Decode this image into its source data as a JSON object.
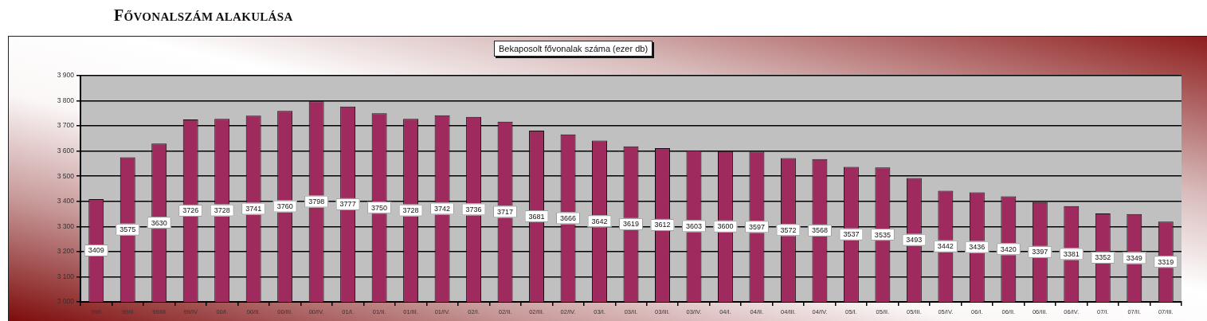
{
  "chart_data": {
    "type": "bar",
    "title": "FŐVONALSZÁM ALAKULÁSA",
    "subtitle": "Bekaposolt fővonalak száma (ezer db)",
    "categories": [
      "99/I",
      "99/II",
      "99/III",
      "99/IV",
      "00/I.",
      "00/II.",
      "00/III.",
      "00/IV.",
      "01/I.",
      "01/II.",
      "01/III.",
      "01/IV.",
      "02/I.",
      "02/II.",
      "02/III.",
      "02/IV.",
      "03/I.",
      "03/II.",
      "03/III.",
      "03/IV.",
      "04/I.",
      "04/II.",
      "04/III.",
      "04/IV.",
      "05/I.",
      "05/II.",
      "05/III.",
      "05/IV.",
      "06/I.",
      "06/II.",
      "06/III.",
      "06/IV.",
      "07/I.",
      "07/II.",
      "07/III."
    ],
    "values": [
      3409,
      3575,
      3630,
      3726,
      3728,
      3741,
      3760,
      3798,
      3777,
      3750,
      3728,
      3742,
      3736,
      3717,
      3681,
      3666,
      3642,
      3619,
      3612,
      3603,
      3600,
      3597,
      3572,
      3568,
      3537,
      3535,
      3493,
      3442,
      3436,
      3420,
      3397,
      3381,
      3352,
      3349,
      3319
    ],
    "color": "#9e2a5e",
    "ylim": [
      3000,
      3900
    ],
    "yticks": [
      {
        "value": 3000,
        "label": "3 000"
      },
      {
        "value": 3100,
        "label": "3 100"
      },
      {
        "value": 3200,
        "label": "3 200"
      },
      {
        "value": 3300,
        "label": "3 300"
      },
      {
        "value": 3400,
        "label": "3 400"
      },
      {
        "value": 3500,
        "label": "3 500"
      },
      {
        "value": 3600,
        "label": "3 600"
      },
      {
        "value": 3700,
        "label": "3 700"
      },
      {
        "value": 3800,
        "label": "3 800"
      },
      {
        "value": 3900,
        "label": "3 900"
      }
    ],
    "grid": "y",
    "data_labels": true
  }
}
